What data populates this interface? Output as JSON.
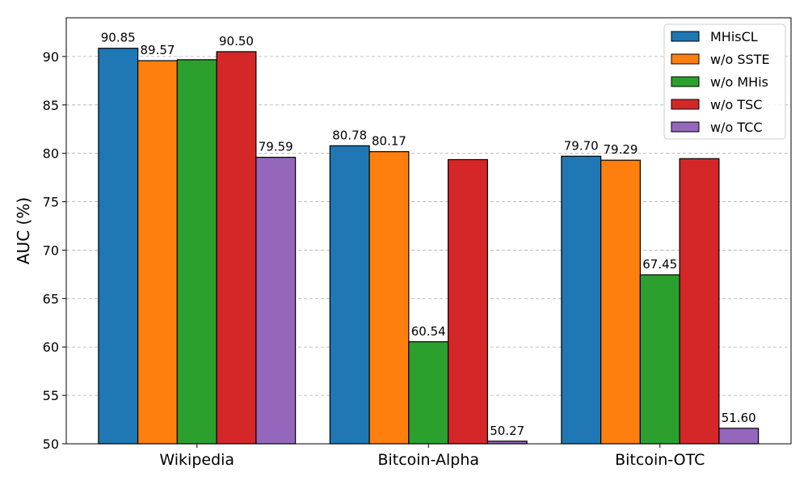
{
  "chart_data": {
    "type": "bar",
    "categories": [
      "Wikipedia",
      "Bitcoin-Alpha",
      "Bitcoin-OTC"
    ],
    "series": [
      {
        "name": "MHisCL",
        "color": "#1f77b4",
        "values": [
          90.85,
          80.78,
          79.7
        ]
      },
      {
        "name": "w/o SSTE",
        "color": "#ff7f0e",
        "values": [
          89.57,
          80.17,
          79.29
        ]
      },
      {
        "name": "w/o MHis",
        "color": "#2ca02c",
        "values": [
          89.67,
          60.54,
          67.45
        ]
      },
      {
        "name": "w/o TSC",
        "color": "#d62728",
        "values": [
          90.5,
          79.35,
          79.45
        ]
      },
      {
        "name": "w/o TCC",
        "color": "#9467bd",
        "values": [
          79.59,
          50.27,
          51.6
        ]
      }
    ],
    "data_labels": [
      [
        "90.85",
        "80.78",
        "79.70"
      ],
      [
        "89.57",
        "80.17",
        "79.29"
      ],
      [
        "89.67",
        "60.54",
        "67.45"
      ],
      [
        "90.50",
        "79.35",
        "79.45"
      ],
      [
        "79.59",
        "50.27",
        "51.60"
      ]
    ],
    "hidden_labels": [
      [
        2,
        0
      ],
      [
        3,
        1
      ],
      [
        3,
        2
      ]
    ],
    "ylabel": "AUC (%)",
    "xlabel": "",
    "title": "",
    "ylim": [
      50,
      94
    ],
    "yticks": [
      50,
      55,
      60,
      65,
      70,
      75,
      80,
      85,
      90
    ],
    "grid": "y-dashed",
    "legend_position": "top-right"
  }
}
